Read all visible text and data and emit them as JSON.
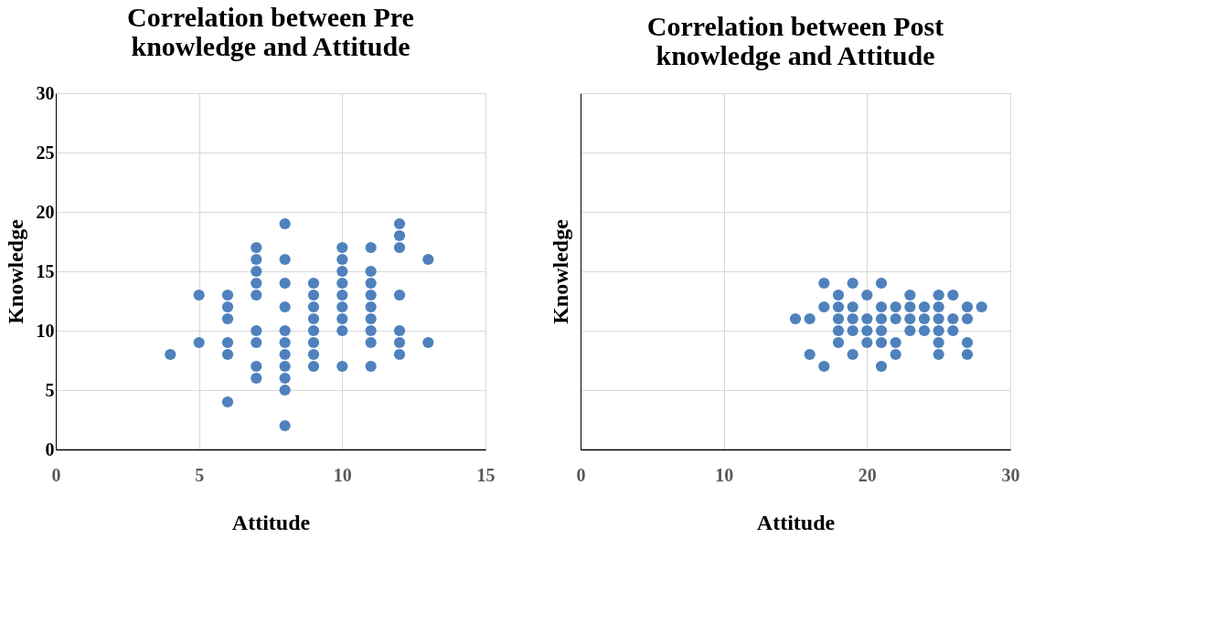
{
  "chart_data": [
    {
      "type": "scatter",
      "title": "Correlation between Pre knowledge and  Attitude",
      "xlabel": "Attitude",
      "ylabel": "Knowledge",
      "color": "#4f81bd",
      "marker": "circle",
      "grid": true,
      "x": [
        4,
        5,
        5,
        6,
        6,
        6,
        6,
        6,
        6,
        7,
        7,
        7,
        7,
        7,
        7,
        7,
        7,
        7,
        8,
        8,
        8,
        8,
        8,
        8,
        8,
        8,
        8,
        8,
        8,
        9,
        9,
        9,
        9,
        9,
        9,
        9,
        9,
        10,
        10,
        10,
        10,
        10,
        10,
        10,
        10,
        10,
        11,
        11,
        11,
        11,
        11,
        11,
        11,
        11,
        11,
        12,
        12,
        12,
        12,
        12,
        12,
        12,
        13,
        13
      ],
      "values": [
        8,
        13,
        9,
        13,
        12,
        11,
        9,
        8,
        4,
        17,
        16,
        15,
        14,
        13,
        10,
        9,
        7,
        6,
        19,
        16,
        14,
        12,
        10,
        9,
        8,
        7,
        6,
        5,
        2,
        14,
        13,
        12,
        11,
        10,
        9,
        8,
        7,
        17,
        16,
        15,
        14,
        13,
        12,
        11,
        10,
        7,
        17,
        15,
        14,
        13,
        12,
        11,
        10,
        9,
        7,
        19,
        18,
        17,
        13,
        10,
        9,
        8,
        16,
        9
      ],
      "xlim": [
        0,
        15
      ],
      "xticks": [
        0,
        5,
        10,
        15
      ],
      "ylim": [
        0,
        30
      ],
      "yticks": [
        0,
        5,
        10,
        15,
        20,
        25,
        30
      ]
    },
    {
      "type": "scatter",
      "title": "Correlation between Post knowledge and  Attitude",
      "xlabel": "Attitude",
      "ylabel": "Knowledge",
      "color": "#4f81bd",
      "marker": "circle",
      "grid": true,
      "tick_labels": "x",
      "x": [
        15,
        16,
        16,
        17,
        17,
        17,
        18,
        18,
        18,
        18,
        18,
        19,
        19,
        19,
        19,
        19,
        20,
        20,
        20,
        20,
        21,
        21,
        21,
        21,
        21,
        21,
        22,
        22,
        22,
        22,
        23,
        23,
        23,
        23,
        24,
        24,
        24,
        25,
        25,
        25,
        25,
        25,
        25,
        26,
        26,
        26,
        27,
        27,
        27,
        27,
        28
      ],
      "values": [
        11,
        11,
        8,
        14,
        12,
        7,
        13,
        12,
        11,
        10,
        9,
        14,
        12,
        11,
        10,
        8,
        13,
        11,
        10,
        9,
        14,
        12,
        11,
        10,
        9,
        7,
        12,
        11,
        9,
        8,
        13,
        12,
        11,
        10,
        12,
        11,
        10,
        13,
        12,
        11,
        10,
        9,
        8,
        13,
        11,
        10,
        12,
        11,
        9,
        8,
        12
      ],
      "xlim": [
        0,
        30
      ],
      "xticks": [
        0,
        10,
        20,
        30
      ],
      "ylim": [
        0,
        30
      ],
      "yticks": [
        {
          "value": 0,
          "label": null
        },
        {
          "value": 5,
          "label": null
        },
        {
          "value": 10,
          "label": null
        },
        {
          "value": 15,
          "label": null
        },
        {
          "value": 20,
          "label": null
        },
        {
          "value": 25,
          "label": null
        },
        {
          "value": 30,
          "label": null
        }
      ]
    }
  ]
}
